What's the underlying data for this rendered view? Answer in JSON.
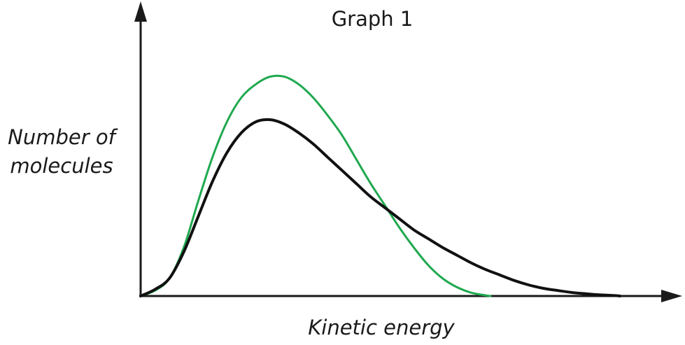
{
  "chart_data": {
    "type": "line",
    "title": "Graph 1",
    "xlabel": "Kinetic energy",
    "ylabel": [
      "Number of",
      "molecules"
    ],
    "xlim": [
      0,
      100
    ],
    "ylim": [
      0,
      100
    ],
    "grid": false,
    "series": [
      {
        "color": "#1fa84f",
        "x": [
          0,
          3,
          6,
          9,
          12,
          15,
          18,
          21,
          24,
          27,
          30,
          33,
          36,
          39,
          42,
          45,
          48,
          51,
          54,
          57,
          60,
          63,
          66,
          69,
          72,
          73
        ],
        "y": [
          0,
          2.5,
          8,
          22,
          43,
          63,
          79,
          90,
          96,
          99.5,
          99.5,
          96,
          90,
          82,
          73,
          62,
          51,
          41,
          31,
          22,
          14,
          8,
          4,
          1.5,
          0.3,
          0
        ]
      },
      {
        "color": "#111111",
        "x": [
          0,
          3,
          6,
          9,
          12,
          15,
          18,
          21,
          24,
          27,
          30,
          33,
          36,
          39,
          42,
          45,
          48,
          51,
          54,
          57,
          60,
          63,
          66,
          69,
          72,
          75,
          78,
          81,
          84,
          87,
          90,
          93,
          96,
          99,
          100
        ],
        "y": [
          0,
          3,
          8,
          20,
          36,
          52,
          65,
          74,
          79,
          80,
          78,
          74,
          69,
          63,
          57,
          51,
          45,
          40,
          35,
          30,
          26,
          22,
          18.5,
          15,
          12,
          9.5,
          7,
          5,
          3.5,
          2.5,
          1.6,
          1,
          0.5,
          0.2,
          0
        ]
      }
    ]
  }
}
